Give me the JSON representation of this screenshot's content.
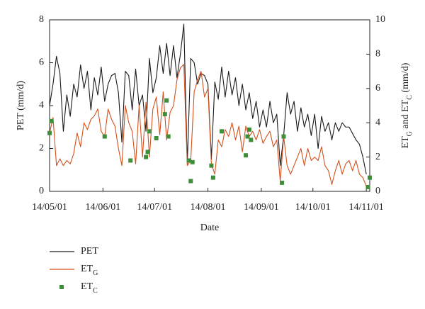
{
  "chart_data": {
    "type": "line",
    "x_label": "Date",
    "y_label": "PET (mm/d)",
    "y2_label": "ET_G and ET_C (mm/d)",
    "xlim": [
      "14/05/01",
      "14/11/03"
    ],
    "xticks": [
      "14/05/01",
      "14/06/01",
      "14/07/01",
      "14/08/01",
      "14/09/01",
      "14/10/01",
      "14/11/01"
    ],
    "ylim": [
      0,
      8
    ],
    "yticks": [
      0,
      2,
      4,
      6,
      8
    ],
    "y2lim": [
      0,
      10
    ],
    "y2ticks": [
      0,
      2,
      4,
      6,
      8,
      10
    ],
    "grid": false,
    "legend": "bottom-left",
    "x": [
      "14/05/01",
      "14/05/03",
      "14/05/05",
      "14/05/07",
      "14/05/09",
      "14/05/11",
      "14/05/13",
      "14/05/15",
      "14/05/17",
      "14/05/19",
      "14/05/21",
      "14/05/23",
      "14/05/25",
      "14/05/27",
      "14/05/29",
      "14/05/31",
      "14/06/02",
      "14/06/04",
      "14/06/06",
      "14/06/08",
      "14/06/10",
      "14/06/12",
      "14/06/14",
      "14/06/16",
      "14/06/18",
      "14/06/20",
      "14/06/22",
      "14/06/24",
      "14/06/26",
      "14/06/28",
      "14/06/30",
      "14/07/02",
      "14/07/04",
      "14/07/06",
      "14/07/08",
      "14/07/10",
      "14/07/12",
      "14/07/14",
      "14/07/16",
      "14/07/18",
      "14/07/20",
      "14/07/22",
      "14/07/24",
      "14/07/26",
      "14/07/28",
      "14/07/30",
      "14/08/01",
      "14/08/03",
      "14/08/05",
      "14/08/07",
      "14/08/09",
      "14/08/11",
      "14/08/13",
      "14/08/15",
      "14/08/17",
      "14/08/19",
      "14/08/21",
      "14/08/23",
      "14/08/25",
      "14/08/27",
      "14/08/29",
      "14/08/31",
      "14/09/02",
      "14/09/04",
      "14/09/06",
      "14/09/08",
      "14/09/10",
      "14/09/12",
      "14/09/14",
      "14/09/16",
      "14/09/18",
      "14/09/20",
      "14/09/22",
      "14/09/24",
      "14/09/26",
      "14/09/28",
      "14/09/30",
      "14/10/02",
      "14/10/04",
      "14/10/06",
      "14/10/08",
      "14/10/10",
      "14/10/12",
      "14/10/14",
      "14/10/16",
      "14/10/18",
      "14/10/20",
      "14/10/22",
      "14/10/24",
      "14/10/26",
      "14/10/28",
      "14/10/30",
      "14/11/01"
    ],
    "series": [
      {
        "name": "PET",
        "color": "#1a1a1a",
        "axis": "y",
        "marker": "line",
        "values": [
          4.0,
          5.0,
          6.3,
          5.5,
          2.8,
          4.5,
          3.5,
          5.0,
          4.4,
          5.9,
          4.8,
          5.6,
          3.8,
          5.3,
          4.5,
          5.8,
          4.2,
          5.0,
          5.4,
          5.5,
          4.6,
          2.3,
          5.6,
          5.4,
          3.8,
          5.7,
          4.0,
          4.5,
          2.8,
          6.2,
          4.6,
          5.3,
          6.8,
          5.5,
          6.9,
          5.4,
          6.8,
          5.3,
          6.4,
          7.8,
          1.3,
          6.2,
          6.0,
          5.0,
          5.5,
          5.4,
          5.0,
          1.5,
          5.1,
          4.3,
          5.8,
          4.4,
          5.6,
          4.5,
          5.3,
          4.0,
          5.0,
          3.8,
          4.6,
          3.4,
          4.2,
          3.0,
          3.8,
          3.0,
          4.2,
          3.2,
          3.6,
          1.2,
          2.6,
          4.6,
          3.6,
          4.2,
          2.8,
          3.9,
          3.0,
          3.6,
          2.6,
          3.6,
          2.0,
          3.5,
          2.8,
          3.2,
          2.4,
          3.2,
          2.8,
          3.2,
          3.0,
          3.0,
          2.7,
          2.4,
          2.2,
          1.6,
          0.8
        ]
      },
      {
        "name": "ET_G",
        "color": "#d4501c",
        "axis": "y2",
        "marker": "line",
        "values": [
          3.4,
          4.3,
          1.5,
          1.9,
          1.5,
          1.8,
          1.6,
          2.2,
          3.4,
          2.6,
          4.0,
          3.6,
          4.2,
          4.4,
          4.8,
          3.5,
          3.2,
          4.8,
          4.2,
          3.8,
          2.5,
          1.5,
          5.0,
          4.0,
          3.5,
          1.6,
          5.0,
          2.0,
          5.2,
          2.0,
          4.8,
          5.5,
          3.3,
          5.8,
          3.0,
          4.6,
          5.0,
          6.5,
          7.2,
          7.4,
          1.5,
          1.8,
          5.8,
          6.5,
          7.0,
          5.5,
          6.0,
          1.6,
          1.0,
          3.0,
          2.6,
          3.6,
          3.2,
          4.0,
          3.0,
          3.8,
          2.3,
          3.8,
          3.2,
          3.5,
          3.0,
          3.6,
          2.8,
          3.2,
          3.5,
          2.6,
          3.0,
          0.6,
          3.2,
          1.5,
          1.0,
          1.5,
          2.0,
          2.5,
          1.5,
          2.5,
          1.8,
          2.0,
          1.8,
          2.6,
          1.5,
          1.2,
          0.4,
          1.2,
          1.8,
          1.0,
          1.6,
          1.8,
          1.2,
          1.8,
          1.0,
          0.8,
          0.3
        ]
      },
      {
        "name": "ET_C",
        "color": "#3f8f3a",
        "axis": "y2",
        "marker": "square",
        "x": [
          "14/05/01",
          "14/05/02",
          "14/06/02",
          "14/06/17",
          "14/06/26",
          "14/06/27",
          "14/06/28",
          "14/07/02",
          "14/07/07",
          "14/07/08",
          "14/07/09",
          "14/07/21",
          "14/07/22",
          "14/07/23",
          "14/08/03",
          "14/08/04",
          "14/08/09",
          "14/08/23",
          "14/08/24",
          "14/08/25",
          "14/08/26",
          "14/09/13",
          "14/09/14",
          "14/11/02",
          "14/11/03"
        ],
        "values": [
          3.4,
          4.1,
          3.2,
          1.8,
          2.0,
          2.3,
          3.5,
          3.1,
          4.5,
          5.3,
          3.2,
          1.8,
          0.6,
          1.7,
          1.5,
          0.8,
          3.5,
          2.1,
          3.2,
          3.6,
          3.0,
          0.5,
          3.2,
          0.25,
          0.8
        ]
      }
    ]
  }
}
